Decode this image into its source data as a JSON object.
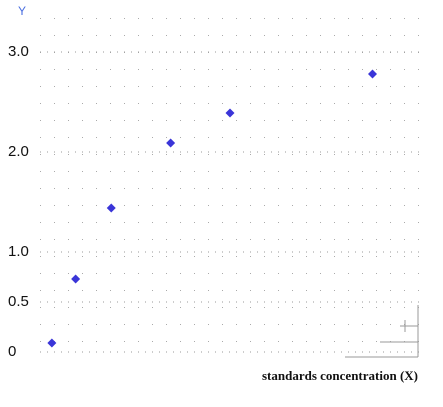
{
  "chart_data": {
    "type": "scatter",
    "y_label": "Y",
    "x_label": "standards concentration (X)",
    "series": [
      {
        "name": null,
        "color": "#3a35d8",
        "x": [
          0.25,
          0.75,
          1.5,
          2.75,
          4,
          7
        ],
        "values": [
          0.09,
          0.73,
          1.44,
          2.09,
          2.39,
          2.78
        ]
      }
    ],
    "xlim": [
      0,
      8
    ],
    "ylim": [
      0,
      3
    ],
    "yticks": [
      {
        "value": 0,
        "label": "0"
      },
      {
        "value": 0.5,
        "label": "0.5"
      },
      {
        "value": 1,
        "label": "1.0"
      },
      {
        "value": 2,
        "label": "2.0"
      },
      {
        "value": 3,
        "label": "3.0"
      }
    ],
    "grid": true
  }
}
